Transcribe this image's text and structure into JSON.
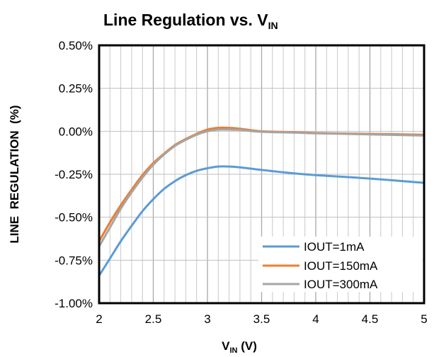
{
  "chart_data": {
    "type": "line",
    "title": {
      "main": "Line Regulation vs. V",
      "sub": "IN"
    },
    "xlabel": {
      "main": "V",
      "sub": "IN",
      "suffix": " (V)"
    },
    "ylabel": "LINE  REGULATION  (%)",
    "xlim": [
      2,
      5
    ],
    "ylim": [
      -1.0,
      0.5
    ],
    "x_ticks": [
      2,
      2.5,
      3,
      3.5,
      4,
      4.5,
      5
    ],
    "x_tick_labels": [
      "2",
      "2.5",
      "3",
      "3.5",
      "4",
      "4.5",
      "5"
    ],
    "y_ticks": [
      0.5,
      0.25,
      0.0,
      -0.25,
      -0.5,
      -0.75,
      -1.0
    ],
    "y_tick_labels": [
      "0.50%",
      "0.25%",
      "0.00%",
      "-0.25%",
      "-0.50%",
      "-0.75%",
      "-1.00%"
    ],
    "grid": {
      "vertical_minor_step": 0.1,
      "horizontal": true
    },
    "legend_position": "bottom-right",
    "series": [
      {
        "name": "IOUT=1mA",
        "color": "#5B9BD5",
        "x": [
          2.0,
          2.1,
          2.2,
          2.3,
          2.4,
          2.5,
          2.6,
          2.7,
          2.8,
          2.9,
          3.0,
          3.1,
          3.2,
          3.3,
          3.5,
          3.8,
          4.0,
          4.5,
          5.0
        ],
        "y": [
          -0.84,
          -0.74,
          -0.64,
          -0.55,
          -0.465,
          -0.395,
          -0.335,
          -0.29,
          -0.255,
          -0.23,
          -0.215,
          -0.205,
          -0.205,
          -0.21,
          -0.225,
          -0.245,
          -0.255,
          -0.275,
          -0.3
        ]
      },
      {
        "name": "IOUT=150mA",
        "color": "#ED7D31",
        "x": [
          2.0,
          2.1,
          2.2,
          2.3,
          2.4,
          2.5,
          2.6,
          2.7,
          2.8,
          2.9,
          3.0,
          3.1,
          3.2,
          3.3,
          3.5,
          3.8,
          4.0,
          4.5,
          5.0
        ],
        "y": [
          -0.64,
          -0.53,
          -0.43,
          -0.34,
          -0.255,
          -0.185,
          -0.13,
          -0.08,
          -0.045,
          -0.015,
          0.01,
          0.02,
          0.02,
          0.015,
          0.0,
          -0.005,
          -0.01,
          -0.015,
          -0.02
        ]
      },
      {
        "name": "IOUT=300mA",
        "color": "#A5A5A5",
        "x": [
          2.0,
          2.1,
          2.2,
          2.3,
          2.4,
          2.5,
          2.6,
          2.7,
          2.8,
          2.9,
          3.0,
          3.1,
          3.2,
          3.3,
          3.5,
          3.8,
          4.0,
          4.5,
          5.0
        ],
        "y": [
          -0.67,
          -0.56,
          -0.45,
          -0.355,
          -0.27,
          -0.195,
          -0.135,
          -0.085,
          -0.05,
          -0.02,
          0.0,
          0.01,
          0.01,
          0.008,
          -0.003,
          -0.008,
          -0.012,
          -0.018,
          -0.025
        ]
      }
    ]
  }
}
